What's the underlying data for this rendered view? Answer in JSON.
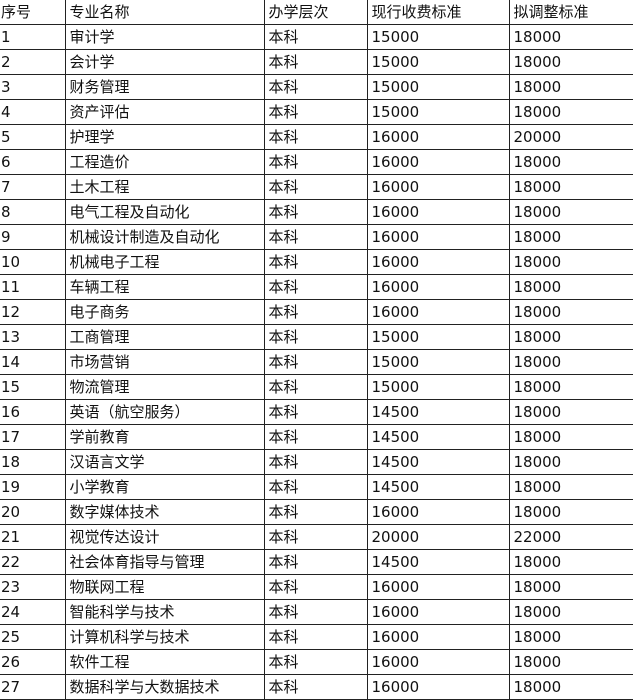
{
  "headers": [
    "序号",
    "专业名称",
    "办学层次",
    "现行收费标准",
    "拟调整标准"
  ],
  "rows": [
    [
      "1",
      "审计学",
      "本科",
      "15000",
      "18000"
    ],
    [
      "2",
      "会计学",
      "本科",
      "15000",
      "18000"
    ],
    [
      "3",
      "财务管理",
      "本科",
      "15000",
      "18000"
    ],
    [
      "4",
      "资产评估",
      "本科",
      "15000",
      "18000"
    ],
    [
      "5",
      "护理学",
      "本科",
      "16000",
      "20000"
    ],
    [
      "6",
      "工程造价",
      "本科",
      "16000",
      "18000"
    ],
    [
      "7",
      "土木工程",
      "本科",
      "16000",
      "18000"
    ],
    [
      "8",
      "电气工程及自动化",
      "本科",
      "16000",
      "18000"
    ],
    [
      "9",
      "机械设计制造及自动化",
      "本科",
      "16000",
      "18000"
    ],
    [
      "10",
      "机械电子工程",
      "本科",
      "16000",
      "18000"
    ],
    [
      "11",
      "车辆工程",
      "本科",
      "16000",
      "18000"
    ],
    [
      "12",
      "电子商务",
      "本科",
      "16000",
      "18000"
    ],
    [
      "13",
      "工商管理",
      "本科",
      "15000",
      "18000"
    ],
    [
      "14",
      "市场营销",
      "本科",
      "15000",
      "18000"
    ],
    [
      "15",
      "物流管理",
      "本科",
      "15000",
      "18000"
    ],
    [
      "16",
      "英语（航空服务）",
      "本科",
      "14500",
      "18000"
    ],
    [
      "17",
      "学前教育",
      "本科",
      "14500",
      "18000"
    ],
    [
      "18",
      "汉语言文学",
      "本科",
      "14500",
      "18000"
    ],
    [
      "19",
      "小学教育",
      "本科",
      "14500",
      "18000"
    ],
    [
      "20",
      "数字媒体技术",
      "本科",
      "16000",
      "18000"
    ],
    [
      "21",
      "视觉传达设计",
      "本科",
      "20000",
      "22000"
    ],
    [
      "22",
      "社会体育指导与管理",
      "本科",
      "14500",
      "18000"
    ],
    [
      "23",
      "物联网工程",
      "本科",
      "16000",
      "18000"
    ],
    [
      "24",
      "智能科学与技术",
      "本科",
      "16000",
      "18000"
    ],
    [
      "25",
      "计算机科学与技术",
      "本科",
      "16000",
      "18000"
    ],
    [
      "26",
      "软件工程",
      "本科",
      "16000",
      "18000"
    ],
    [
      "27",
      "数据科学与大数据技术",
      "本科",
      "16000",
      "18000"
    ]
  ]
}
